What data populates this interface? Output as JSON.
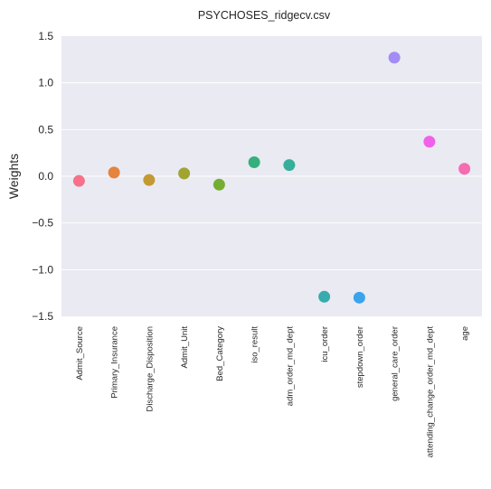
{
  "chart_data": {
    "type": "scatter",
    "title": "PSYCHOSES_ridgecv.csv",
    "xlabel": "",
    "ylabel": "Weights",
    "ylim": [
      -1.5,
      1.5
    ],
    "yticks": [
      1.5,
      1.0,
      0.5,
      0.0,
      -0.5,
      -1.0,
      -1.5
    ],
    "ytick_labels": [
      "1.5",
      "1.0",
      "0.5",
      "0.0",
      "−0.5",
      "−1.0",
      "−1.5"
    ],
    "grid": true,
    "categories": [
      "Admit_Source",
      "Primary_Insurance",
      "Discharge_Disposition",
      "Admit_Unit",
      "Bed_Category",
      "iso_result",
      "adm_order_md_dept",
      "icu_order",
      "stepdown_order",
      "general_care_order",
      "attending_change_order_md_dept",
      "age"
    ],
    "values": [
      -0.05,
      0.04,
      -0.04,
      0.03,
      -0.09,
      0.15,
      0.12,
      -1.29,
      -1.3,
      1.27,
      0.37,
      0.08
    ],
    "colors": [
      "#f77189",
      "#e6833d",
      "#c39a31",
      "#a1a431",
      "#73ae32",
      "#35b07c",
      "#36ae99",
      "#38abad",
      "#3ba3ec",
      "#a38cf4",
      "#f160e8",
      "#f56cb1"
    ]
  }
}
